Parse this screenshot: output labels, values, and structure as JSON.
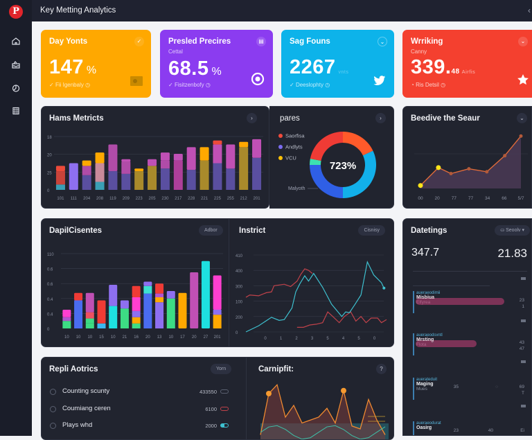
{
  "app": {
    "title": "Key Metting Analytics",
    "back_icon": "chevron-left-icon"
  },
  "sidebar": {
    "logo": "P",
    "items": [
      {
        "name": "home",
        "icon": "home-icon"
      },
      {
        "name": "inbox",
        "icon": "inbox-icon"
      },
      {
        "name": "analytics",
        "icon": "chart-icon"
      },
      {
        "name": "calendar",
        "icon": "calendar-icon"
      }
    ]
  },
  "kpis": [
    {
      "title": "Day Yonts",
      "subtitle": "",
      "value": "147",
      "unit": "%",
      "foot": "Fii Igenbaly",
      "color": "#ffa800",
      "corner": "✓",
      "badge": "folder-icon"
    },
    {
      "title": "Presled Precires",
      "subtitle": "Cettal",
      "value": "68.5",
      "unit": "%",
      "foot": "Fisitzenbofy",
      "color": "#8b3cf0",
      "corner": "▤",
      "badge": "target-icon"
    },
    {
      "title": "Sag Founs",
      "subtitle": "",
      "value": "2267",
      "unit": "vnts",
      "foot": "Deeslophty",
      "color": "#0db3ea",
      "corner": "⌄",
      "badge": "twitter-icon"
    },
    {
      "title": "Wrriking",
      "subtitle": "Canny",
      "value": "339.",
      "small_value": "48",
      "unit": "Airfis",
      "foot": "Ris Detsil",
      "color": "#f4402f",
      "corner": "⌄",
      "badge": "star-icon"
    }
  ],
  "panels": {
    "hams": {
      "title": "Hams Metricts",
      "btn": "›"
    },
    "pares": {
      "title": "pares",
      "btn": "›"
    },
    "beedive": {
      "title": "Beedive the Seaur",
      "btn": "⌄"
    },
    "dapi": {
      "title": "DapiICisentes",
      "pill": "Adbor"
    },
    "instrict": {
      "title": "Instrict",
      "pill": "Cisnisy"
    },
    "datetings": {
      "title": "Datetings",
      "pill": "Seoolv ▾"
    },
    "repli": {
      "title": "Repli Aotrics",
      "pill": "Yorn"
    },
    "carnipfit": {
      "title": "Carnipfit:",
      "btn": "?"
    }
  },
  "chart_data": [
    {
      "id": "hams",
      "type": "bar",
      "stacked": true,
      "title": "Hams Metricts",
      "categories": [
        "101",
        "111",
        "204",
        "208",
        "119",
        "209",
        "223",
        "205",
        "230",
        "217",
        "228",
        "221",
        "225",
        "255",
        "212",
        "201"
      ],
      "ytick_labels": [
        "0",
        "25",
        "20",
        "18"
      ],
      "ylim": [
        0,
        20
      ],
      "segment_colors": [
        "#5a4fa0",
        "#b04ca8",
        "#ffa800",
        "#ec4a3a",
        "#3a9fb5",
        "#8e6ff0",
        "#c98a9a",
        "#a98a2b",
        "#ad3f9a"
      ],
      "series_stacks": [
        [
          [
            2,
            "#3a9fb5"
          ],
          [
            7,
            "#c9433a"
          ],
          [
            9,
            "#ec4a3a"
          ]
        ],
        [
          [
            10,
            "#8e6ff0"
          ]
        ],
        [
          [
            5.5,
            "#5a4fa0"
          ],
          [
            9,
            "#b04ca8"
          ],
          [
            11,
            "#ffa800"
          ]
        ],
        [
          [
            3,
            "#3a9fb5"
          ],
          [
            10,
            "#c98a9a"
          ],
          [
            14,
            "#ffa800"
          ]
        ],
        [
          [
            7,
            "#5a4fa0"
          ],
          [
            17,
            "#b04ca8"
          ]
        ],
        [
          [
            6,
            "#5a4fa0"
          ],
          [
            10.5,
            "#b04ca8"
          ],
          [
            11.5,
            "#c050b5"
          ]
        ],
        [
          [
            7,
            "#a98a2b"
          ],
          [
            8,
            "#ffa800"
          ]
        ],
        [
          [
            9,
            "#a98a2b"
          ],
          [
            11.5,
            "#c050b5"
          ]
        ],
        [
          [
            8,
            "#5a4fa0"
          ],
          [
            11,
            "#b04ca8"
          ],
          [
            14,
            "#c050b5"
          ]
        ],
        [
          [
            11,
            "#ad3f9a"
          ],
          [
            13.5,
            "#c050b5"
          ]
        ],
        [
          [
            7.5,
            "#5a4fa0"
          ],
          [
            16,
            "#c050b5"
          ]
        ],
        [
          [
            11,
            "#a98a2b"
          ],
          [
            16,
            "#ffa800"
          ]
        ],
        [
          [
            10,
            "#5a4fa0"
          ],
          [
            17,
            "#c050b5"
          ],
          [
            18.5,
            "#ec4a3a"
          ]
        ],
        [
          [
            8,
            "#5a4fa0"
          ],
          [
            17,
            "#c050b5"
          ]
        ],
        [
          [
            16,
            "#a98a2b"
          ],
          [
            18,
            "#ffa800"
          ]
        ],
        [
          [
            12,
            "#5a4fa0"
          ],
          [
            19,
            "#c050b5"
          ]
        ]
      ]
    },
    {
      "id": "pares",
      "type": "pie",
      "donut": true,
      "title": "pares",
      "center_label": "723%",
      "legend": [
        {
          "label": "Saorfisa",
          "color": "#f04b3c"
        },
        {
          "label": "Andlyts",
          "color": "#7b6cf0"
        },
        {
          "label": "VCU",
          "color": "#ffc107"
        }
      ],
      "annotation": "Malyoth",
      "slices": [
        {
          "value": 18,
          "color": "#ff5a2a"
        },
        {
          "value": 32,
          "color": "#12b0ea"
        },
        {
          "value": 25,
          "color": "#2f5fe6"
        },
        {
          "value": 3,
          "color": "#3de0b0"
        },
        {
          "value": 22,
          "color": "#ef3b35"
        }
      ]
    },
    {
      "id": "beedive",
      "type": "area",
      "title": "Beedive the Seaur",
      "categories": [
        "00",
        "20",
        "77",
        "77",
        "34",
        "66",
        "5/7"
      ],
      "x": [
        0,
        1,
        1.7,
        2.7,
        3.7,
        4.7,
        5.6
      ],
      "values": [
        5,
        35,
        25,
        33,
        28,
        55,
        88
      ],
      "ylim": [
        0,
        100
      ],
      "highlight_points": [
        0,
        1
      ],
      "color": "#e06b3a"
    },
    {
      "id": "dapi",
      "type": "bar",
      "stacked": true,
      "title": "DapiICisentes",
      "categories": [
        "10",
        "10",
        "10",
        "15",
        "10",
        "21",
        "16",
        "20",
        "13",
        "10",
        "17",
        "20",
        "27",
        "201"
      ],
      "ytick_labels": [
        "0",
        "0.4",
        "0.4",
        "0.6",
        "0.6",
        "110"
      ],
      "ylim": [
        0,
        1.2
      ],
      "series_stacks": [
        [
          [
            0.12,
            "#3ddc84"
          ],
          [
            0.18,
            "#b055d0"
          ],
          [
            0.3,
            "#ff3fd0"
          ]
        ],
        [
          [
            0.45,
            "#4a6cf0"
          ],
          [
            0.57,
            "#ef3b35"
          ]
        ],
        [
          [
            0.08,
            "#3ddc84"
          ],
          [
            0.16,
            "#3ddc84"
          ],
          [
            0.26,
            "#ef5060"
          ],
          [
            0.57,
            "#c050b5"
          ]
        ],
        [
          [
            0.08,
            "#3ab8f0"
          ],
          [
            0.45,
            "#ef3b35"
          ]
        ],
        [
          [
            0.36,
            "#1ee0e0"
          ],
          [
            0.7,
            "#8e6ff0"
          ]
        ],
        [
          [
            0.32,
            "#3ddc84"
          ],
          [
            0.45,
            "#8e6ff0"
          ]
        ],
        [
          [
            0.08,
            "#3ddc84"
          ],
          [
            0.18,
            "#ffa800"
          ],
          [
            0.28,
            "#8e6ff0"
          ],
          [
            0.5,
            "#ff3fd0"
          ],
          [
            0.68,
            "#ef3b35"
          ]
        ],
        [
          [
            0.56,
            "#4a6cf0"
          ],
          [
            0.68,
            "#3de0d0"
          ],
          [
            0.75,
            "#8e6ff0"
          ]
        ],
        [
          [
            0.42,
            "#8e6ff0"
          ],
          [
            0.5,
            "#ffa800"
          ],
          [
            0.56,
            "#b055d0"
          ],
          [
            0.72,
            "#ef3b35"
          ]
        ],
        [
          [
            0.48,
            "#3ddc84"
          ],
          [
            0.6,
            "#8e6ff0"
          ]
        ],
        [
          [
            0.57,
            "#ffa800"
          ]
        ],
        [
          [
            0.9,
            "#c050b5"
          ]
        ],
        [
          [
            1.08,
            "#1ee0e0"
          ]
        ],
        [
          [
            0.22,
            "#ffa800"
          ],
          [
            0.3,
            "#8e6ff0"
          ],
          [
            0.85,
            "#ff3fd0"
          ]
        ]
      ]
    },
    {
      "id": "instrict",
      "type": "line",
      "title": "Instrict",
      "categories": [
        "0",
        "1",
        "2",
        "3",
        "5",
        "4",
        "5",
        "0"
      ],
      "ytick_labels": [
        "0",
        "200",
        "100",
        "300",
        "400",
        "410"
      ],
      "ylim": [
        0,
        500
      ],
      "series": [
        {
          "name": "red",
          "color": "#c0424a",
          "values": [
            [
              0,
              225
            ],
            [
              0.3,
              240
            ],
            [
              1,
              235
            ],
            [
              1.6,
              255
            ],
            [
              2,
              260
            ],
            [
              2.2,
              300
            ],
            [
              2.6,
              305
            ],
            [
              3,
              310
            ],
            [
              3.5,
              295
            ],
            [
              4,
              330
            ],
            [
              4.3,
              375
            ],
            [
              4.6,
              410
            ],
            [
              4.9,
              400
            ],
            [
              5.2,
              380
            ]
          ]
        },
        {
          "name": "red2",
          "color": "#c0424a",
          "values": [
            [
              4,
              30
            ],
            [
              4.5,
              30
            ],
            [
              5,
              45
            ],
            [
              5.5,
              50
            ],
            [
              6,
              60
            ],
            [
              6.4,
              130
            ],
            [
              6.8,
              100
            ],
            [
              7.3,
              60
            ],
            [
              7.7,
              100
            ],
            [
              8.2,
              130
            ],
            [
              8.6,
              70
            ],
            [
              9,
              100
            ],
            [
              9.4,
              60
            ],
            [
              9.8,
              90
            ],
            [
              10.3,
              90
            ],
            [
              10.6,
              60
            ],
            [
              11,
              80
            ]
          ]
        },
        {
          "name": "cyan",
          "color": "#3ec0cf",
          "values": [
            [
              0,
              0
            ],
            [
              1,
              40
            ],
            [
              2,
              95
            ],
            [
              2.6,
              75
            ],
            [
              3,
              80
            ],
            [
              3.6,
              155
            ],
            [
              3.9,
              260
            ],
            [
              4.2,
              310
            ],
            [
              4.6,
              365
            ],
            [
              4.9,
              330
            ],
            [
              5.3,
              380
            ],
            [
              6,
              290
            ],
            [
              6.7,
              180
            ],
            [
              7.2,
              130
            ],
            [
              7.5,
              100
            ],
            [
              7.8,
              130
            ],
            [
              8.1,
              125
            ],
            [
              8.5,
              175
            ],
            [
              9,
              240
            ],
            [
              9.5,
              455
            ],
            [
              10,
              370
            ],
            [
              10.6,
              320
            ],
            [
              10.8,
              285
            ]
          ]
        }
      ]
    },
    {
      "id": "carnipfit",
      "type": "area",
      "title": "Carnipfit:",
      "values": [
        10,
        80,
        95,
        40,
        60,
        30,
        35,
        40,
        55,
        30,
        85,
        25,
        20,
        70,
        35,
        10
      ],
      "ylim": [
        0,
        100
      ]
    }
  ],
  "datetings": {
    "left_value": "347.7",
    "right_value": "21.83",
    "items": [
      {
        "cat": "aueraeodimii",
        "name": "Misbiua",
        "sub": "Elfyrea",
        "right1": "23",
        "right2": "1",
        "bar": 0.8
      },
      {
        "cat": "aueraeodsvntl",
        "name": "Mrsting",
        "sub": "Flota",
        "right1": "43",
        "right2": "47",
        "bar": 0.55
      },
      {
        "cat": "auerateduit",
        "name": "Maging",
        "sub": "Mues",
        "mid": "35",
        "right1": "69",
        "right2": "T",
        "bar": 0
      },
      {
        "cat": "aueraeodurat",
        "name": "Oasirg",
        "sub": "",
        "mid": "23",
        "mid2": "40",
        "right1": "Ei",
        "right2": "",
        "bar": 0
      }
    ]
  },
  "repli": {
    "rows": [
      {
        "label": "Counting scunty",
        "value": "433550",
        "toggle_color": "#6a7080"
      },
      {
        "label": "Coumiang ceren",
        "value": "6100",
        "toggle_color": "#c0424a"
      },
      {
        "label": "Plays whd",
        "value": "2000",
        "toggle_color": "#3ec0cf"
      }
    ]
  }
}
